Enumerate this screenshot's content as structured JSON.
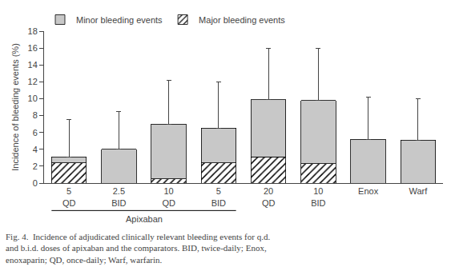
{
  "chart_data": {
    "type": "bar",
    "stacked": true,
    "categories": [
      "5\nQD",
      "2.5\nBID",
      "10\nQD",
      "5\nBID",
      "20\nQD",
      "10\nBID",
      "Enox",
      "Warf"
    ],
    "series": [
      {
        "name": "Major bleeding events",
        "color": "#c8c8c8",
        "marker": "hatch",
        "values": [
          2.4,
          0.0,
          0.5,
          2.4,
          3.1,
          2.3,
          0.0,
          0.0
        ]
      },
      {
        "name": "Minor bleeding events",
        "color": "#c8c8c8",
        "values": [
          0.7,
          4.0,
          6.5,
          4.1,
          6.8,
          7.5,
          5.2,
          5.1
        ]
      }
    ],
    "error_upper": [
      7.5,
      8.5,
      12.2,
      12.0,
      16.0,
      16.0,
      10.2,
      10.0
    ],
    "ylabel": "Incidence of bleeding events (%)",
    "ylim": [
      0,
      18
    ],
    "yticks": [
      0,
      2,
      4,
      6,
      8,
      10,
      12,
      14,
      16,
      18
    ],
    "grid": false,
    "legend": "upper left",
    "annotations": [
      {
        "text": "Apixaban",
        "from": "5\nQD",
        "to": "5\nBID"
      }
    ],
    "caption": "Fig. 4.  Incidence of adjudicated clinically relevant bleeding events for q.d.\nand b.i.d. doses of apixaban and the comparators. BID, twice-daily; Enox,\nenoxaparin; QD, once-daily; Warf, warfarin."
  }
}
